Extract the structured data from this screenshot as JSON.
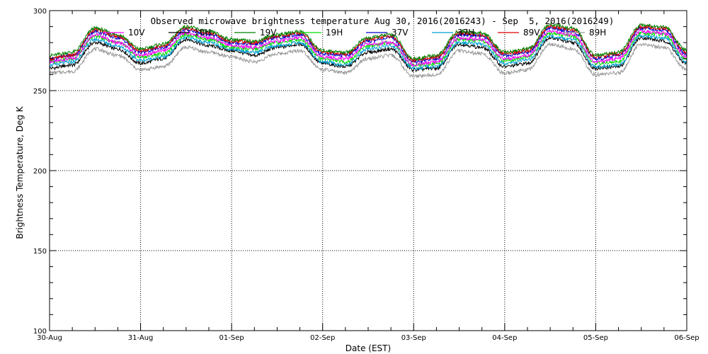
{
  "chart_data": {
    "type": "line",
    "title": "Observed microwave brightness temperature Aug 30, 2016(2016243) - Sep  5, 2016(2016249)",
    "xlabel": "Date (EST)",
    "ylabel": "Brightness Temperature, Deg K",
    "x_ticks": [
      "30-Aug",
      "31-Aug",
      "01-Sep",
      "02-Sep",
      "03-Sep",
      "04-Sep",
      "05-Sep",
      "06-Sep"
    ],
    "xlim": [
      "2016-08-30",
      "2016-09-06"
    ],
    "y_ticks": [
      100,
      150,
      200,
      250,
      300
    ],
    "ylim": [
      100,
      300
    ],
    "grid": true,
    "legend_position": "top",
    "x": [
      "2016-08-30 00:00",
      "2016-08-30 06:00",
      "2016-08-30 12:00",
      "2016-08-30 18:00",
      "2016-08-31 00:00",
      "2016-08-31 06:00",
      "2016-08-31 12:00",
      "2016-08-31 18:00",
      "2016-09-01 00:00",
      "2016-09-01 06:00",
      "2016-09-01 12:00",
      "2016-09-01 18:00",
      "2016-09-02 00:00",
      "2016-09-02 06:00",
      "2016-09-02 12:00",
      "2016-09-02 18:00",
      "2016-09-03 00:00",
      "2016-09-03 06:00",
      "2016-09-03 12:00",
      "2016-09-03 18:00",
      "2016-09-04 00:00",
      "2016-09-04 06:00",
      "2016-09-04 12:00",
      "2016-09-04 18:00",
      "2016-09-05 00:00",
      "2016-09-05 06:00",
      "2016-09-05 12:00",
      "2016-09-05 18:00",
      "2016-09-06 00:00"
    ],
    "series": [
      {
        "name": "10V",
        "color": "#ff00ff",
        "values": [
          268,
          270,
          285,
          280,
          272,
          275,
          286,
          283,
          278,
          277,
          281,
          283,
          271,
          270,
          279,
          280,
          266,
          268,
          283,
          282,
          270,
          272,
          287,
          285,
          268,
          270,
          287,
          286,
          271
        ]
      },
      {
        "name": "10H",
        "color": "#000000",
        "values": [
          264,
          266,
          280,
          276,
          267,
          270,
          282,
          278,
          275,
          272,
          277,
          279,
          267,
          265,
          274,
          276,
          263,
          264,
          279,
          277,
          265,
          267,
          283,
          280,
          264,
          265,
          283,
          281,
          267
        ]
      },
      {
        "name": "19V",
        "color": "#008000",
        "values": [
          272,
          274,
          289,
          285,
          276,
          279,
          290,
          287,
          282,
          281,
          285,
          287,
          275,
          274,
          283,
          285,
          270,
          272,
          287,
          286,
          274,
          276,
          291,
          289,
          272,
          274,
          291,
          290,
          275
        ]
      },
      {
        "name": "19H",
        "color": "#00e000",
        "values": [
          268,
          270,
          284,
          280,
          271,
          273,
          285,
          282,
          277,
          276,
          280,
          282,
          270,
          268,
          278,
          280,
          266,
          267,
          282,
          281,
          269,
          271,
          286,
          284,
          267,
          268,
          286,
          285,
          270
        ]
      },
      {
        "name": "37V",
        "color": "#0000cc",
        "values": [
          270,
          272,
          287,
          283,
          274,
          277,
          288,
          285,
          280,
          279,
          283,
          285,
          273,
          272,
          281,
          283,
          268,
          270,
          285,
          284,
          272,
          274,
          289,
          287,
          270,
          272,
          289,
          288,
          273
        ]
      },
      {
        "name": "37H",
        "color": "#00a0d0",
        "values": [
          266,
          268,
          282,
          278,
          269,
          271,
          283,
          280,
          276,
          274,
          278,
          280,
          268,
          266,
          276,
          278,
          264,
          265,
          280,
          279,
          267,
          269,
          284,
          282,
          265,
          266,
          284,
          283,
          268
        ]
      },
      {
        "name": "89V",
        "color": "#dd0000",
        "values": [
          270,
          272,
          288,
          284,
          275,
          278,
          289,
          286,
          281,
          280,
          284,
          286,
          274,
          273,
          282,
          284,
          269,
          271,
          286,
          285,
          273,
          275,
          290,
          288,
          271,
          273,
          290,
          289,
          274
        ]
      },
      {
        "name": "89H",
        "color": "#999999",
        "values": [
          261,
          262,
          276,
          272,
          263,
          265,
          277,
          274,
          271,
          268,
          273,
          275,
          263,
          261,
          270,
          272,
          259,
          260,
          275,
          273,
          261,
          263,
          279,
          276,
          260,
          261,
          279,
          277,
          263
        ]
      }
    ]
  }
}
